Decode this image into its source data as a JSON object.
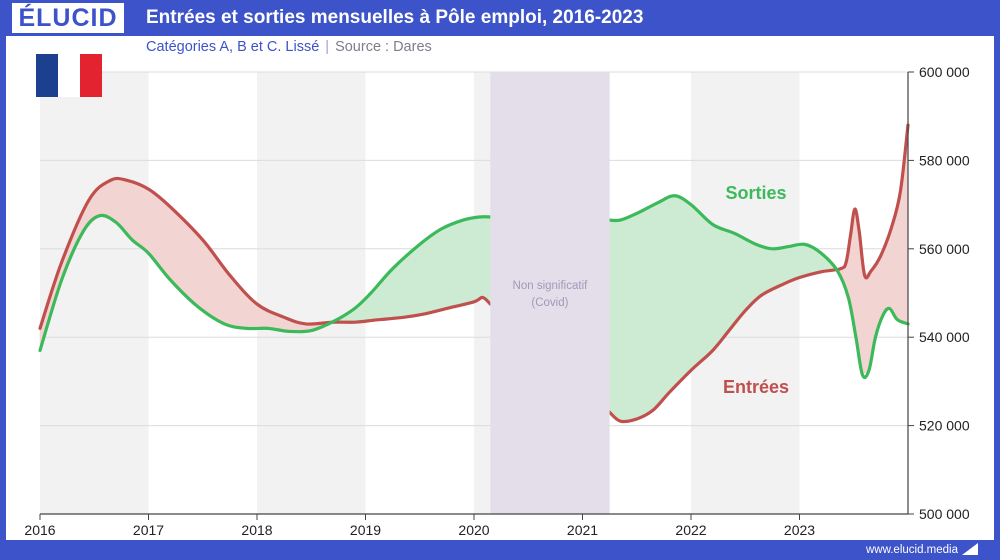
{
  "header": {
    "logo": "ÉLUCID",
    "title": "Entrées et sorties mensuelles à Pôle emploi, 2016-2023",
    "subtitle": "Catégories A, B et C. Lissé",
    "separator": "|",
    "source": "Source : Dares"
  },
  "footer": {
    "site": "www.elucid.media"
  },
  "flag": {
    "colors": [
      "#1d3f8f",
      "#ffffff",
      "#e3232f"
    ]
  },
  "colors": {
    "brand": "#3d53c9",
    "entrees": "#c0504d",
    "sorties": "#3cb95a",
    "gap_entrees_above": "#f2d4d2",
    "gap_sorties_above": "#cdebd3",
    "covid_band": "#e4deeb",
    "covid_text": "#9f9ab8",
    "year_shade": "#f2f2f2"
  },
  "chart_data": {
    "type": "area",
    "xlim": [
      2016,
      2024
    ],
    "ylim": [
      500000,
      600000
    ],
    "x_ticks": [
      2016,
      2017,
      2018,
      2019,
      2020,
      2021,
      2022,
      2023
    ],
    "x_tick_labels": [
      "2016",
      "2017",
      "2018",
      "2019",
      "2020",
      "2021",
      "2022",
      "2023"
    ],
    "y_ticks": [
      500000,
      520000,
      540000,
      560000,
      580000,
      600000
    ],
    "y_tick_labels": [
      "500 000",
      "520 000",
      "540 000",
      "560 000",
      "580 000",
      "600 000"
    ],
    "y_axis_side": "right",
    "alternate_year_shading": true,
    "covid_band": {
      "x_start": 2020.15,
      "x_end": 2021.25,
      "label_line1": "Non significatif",
      "label_line2": "(Covid)"
    },
    "series": [
      {
        "name": "Sorties",
        "label": "Sorties",
        "segments": [
          [
            [
              2016.0,
              537000
            ],
            [
              2016.2,
              553000
            ],
            [
              2016.4,
              564000
            ],
            [
              2016.55,
              567500
            ],
            [
              2016.7,
              566000
            ],
            [
              2016.85,
              562000
            ],
            [
              2017.0,
              559000
            ],
            [
              2017.2,
              553000
            ],
            [
              2017.45,
              547000
            ],
            [
              2017.7,
              543000
            ],
            [
              2017.9,
              542000
            ],
            [
              2018.1,
              542000
            ],
            [
              2018.3,
              541300
            ],
            [
              2018.5,
              541500
            ],
            [
              2018.7,
              543500
            ],
            [
              2018.9,
              546500
            ],
            [
              2019.05,
              550000
            ],
            [
              2019.25,
              555500
            ],
            [
              2019.5,
              561000
            ],
            [
              2019.7,
              564500
            ],
            [
              2019.9,
              566500
            ],
            [
              2020.05,
              567200
            ],
            [
              2020.15,
              567200
            ]
          ],
          [
            [
              2021.25,
              566500
            ],
            [
              2021.35,
              566500
            ],
            [
              2021.5,
              568000
            ],
            [
              2021.7,
              570500
            ],
            [
              2021.85,
              572000
            ],
            [
              2022.0,
              570000
            ],
            [
              2022.2,
              565500
            ],
            [
              2022.4,
              563500
            ],
            [
              2022.6,
              561000
            ],
            [
              2022.75,
              560000
            ],
            [
              2022.9,
              560500
            ],
            [
              2023.05,
              561000
            ],
            [
              2023.2,
              559000
            ],
            [
              2023.35,
              555000
            ],
            [
              2023.45,
              549000
            ],
            [
              2023.52,
              540000
            ],
            [
              2023.58,
              531500
            ],
            [
              2023.64,
              532500
            ],
            [
              2023.7,
              540000
            ],
            [
              2023.77,
              545000
            ],
            [
              2023.83,
              546500
            ],
            [
              2023.9,
              544000
            ],
            [
              2024.0,
              543000
            ]
          ]
        ]
      },
      {
        "name": "Entrées",
        "label": "Entrées",
        "segments": [
          [
            [
              2016.0,
              542000
            ],
            [
              2016.2,
              557000
            ],
            [
              2016.45,
              571000
            ],
            [
              2016.65,
              575500
            ],
            [
              2016.8,
              575500
            ],
            [
              2017.0,
              573500
            ],
            [
              2017.2,
              569500
            ],
            [
              2017.5,
              562000
            ],
            [
              2017.75,
              554000
            ],
            [
              2018.0,
              547500
            ],
            [
              2018.25,
              544500
            ],
            [
              2018.45,
              543000
            ],
            [
              2018.7,
              543400
            ],
            [
              2018.9,
              543400
            ],
            [
              2019.1,
              543900
            ],
            [
              2019.35,
              544500
            ],
            [
              2019.55,
              545300
            ],
            [
              2019.75,
              546500
            ],
            [
              2020.0,
              548000
            ],
            [
              2020.08,
              549000
            ],
            [
              2020.15,
              547500
            ]
          ],
          [
            [
              2021.25,
              523000
            ],
            [
              2021.35,
              521000
            ],
            [
              2021.5,
              521500
            ],
            [
              2021.65,
              523500
            ],
            [
              2021.8,
              527500
            ],
            [
              2022.0,
              532500
            ],
            [
              2022.2,
              537000
            ],
            [
              2022.35,
              541500
            ],
            [
              2022.5,
              546000
            ],
            [
              2022.65,
              549500
            ],
            [
              2022.85,
              552000
            ],
            [
              2023.0,
              553500
            ],
            [
              2023.2,
              554800
            ],
            [
              2023.38,
              555500
            ],
            [
              2023.43,
              557000
            ],
            [
              2023.47,
              563000
            ],
            [
              2023.51,
              569000
            ],
            [
              2023.55,
              564000
            ],
            [
              2023.6,
              554000
            ],
            [
              2023.66,
              555000
            ],
            [
              2023.75,
              558500
            ],
            [
              2023.85,
              565000
            ],
            [
              2023.93,
              573000
            ],
            [
              2024.0,
              588000
            ]
          ]
        ]
      }
    ]
  }
}
